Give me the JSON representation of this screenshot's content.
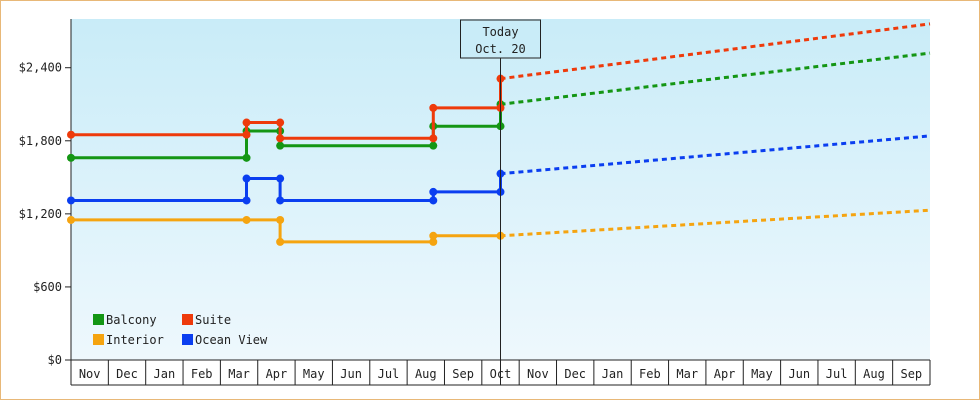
{
  "chart_data": {
    "type": "line",
    "title": "",
    "xlabel": "",
    "ylabel": "",
    "ylim": [
      0,
      2800
    ],
    "y_ticks": [
      0,
      600,
      1200,
      1800,
      2400
    ],
    "y_tick_labels": [
      "$0",
      "$600",
      "$1,200",
      "$1,800",
      "$2,400"
    ],
    "grid": false,
    "legend_position": "bottom-left",
    "months": [
      "Nov",
      "Dec",
      "Jan",
      "Feb",
      "Mar",
      "Apr",
      "May",
      "Jun",
      "Jul",
      "Aug",
      "Sep",
      "Oct",
      "Nov",
      "Dec",
      "Jan",
      "Feb",
      "Mar",
      "Apr",
      "May",
      "Jun",
      "Jul",
      "Aug",
      "Sep"
    ],
    "today": {
      "label": "Today",
      "date": "Oct. 20",
      "x": 11.5
    },
    "series": [
      {
        "name": "Balcony",
        "color": "#149614",
        "history": [
          [
            0,
            1660
          ],
          [
            4.7,
            1660
          ],
          [
            4.7,
            1880
          ],
          [
            5.6,
            1880
          ],
          [
            5.6,
            1760
          ],
          [
            9.7,
            1760
          ],
          [
            9.7,
            1920
          ],
          [
            11.5,
            1920
          ],
          [
            11.5,
            2100
          ]
        ],
        "points": [
          [
            0,
            1660
          ],
          [
            4.7,
            1660
          ],
          [
            4.7,
            1880
          ],
          [
            5.6,
            1880
          ],
          [
            5.6,
            1760
          ],
          [
            9.7,
            1760
          ],
          [
            9.7,
            1920
          ],
          [
            11.5,
            1920
          ],
          [
            11.5,
            2100
          ]
        ],
        "forecast": [
          [
            11.5,
            2100
          ],
          [
            23.0,
            2520
          ]
        ]
      },
      {
        "name": "Suite",
        "color": "#ee3a0b",
        "history": [
          [
            0,
            1850
          ],
          [
            4.7,
            1850
          ],
          [
            4.7,
            1950
          ],
          [
            5.6,
            1950
          ],
          [
            5.6,
            1820
          ],
          [
            9.7,
            1820
          ],
          [
            9.7,
            2070
          ],
          [
            11.5,
            2070
          ],
          [
            11.5,
            2310
          ]
        ],
        "points": [
          [
            0,
            1850
          ],
          [
            4.7,
            1850
          ],
          [
            4.7,
            1950
          ],
          [
            5.6,
            1950
          ],
          [
            5.6,
            1820
          ],
          [
            9.7,
            1820
          ],
          [
            9.7,
            2070
          ],
          [
            11.5,
            2070
          ],
          [
            11.5,
            2310
          ]
        ],
        "forecast": [
          [
            11.5,
            2310
          ],
          [
            23.0,
            2760
          ]
        ]
      },
      {
        "name": "Interior",
        "color": "#f5a410",
        "history": [
          [
            0,
            1150
          ],
          [
            4.7,
            1150
          ],
          [
            5.6,
            1150
          ],
          [
            5.6,
            970
          ],
          [
            9.7,
            970
          ],
          [
            9.7,
            1020
          ],
          [
            11.5,
            1020
          ]
        ],
        "points": [
          [
            0,
            1150
          ],
          [
            4.7,
            1150
          ],
          [
            5.6,
            1150
          ],
          [
            5.6,
            970
          ],
          [
            9.7,
            970
          ],
          [
            9.7,
            1020
          ],
          [
            11.5,
            1020
          ]
        ],
        "forecast": [
          [
            11.5,
            1020
          ],
          [
            23.0,
            1230
          ]
        ]
      },
      {
        "name": "Ocean View",
        "color": "#0a3ef0",
        "history": [
          [
            0,
            1310
          ],
          [
            4.7,
            1310
          ],
          [
            4.7,
            1490
          ],
          [
            5.6,
            1490
          ],
          [
            5.6,
            1310
          ],
          [
            9.7,
            1310
          ],
          [
            9.7,
            1380
          ],
          [
            11.5,
            1380
          ],
          [
            11.5,
            1530
          ]
        ],
        "points": [
          [
            0,
            1310
          ],
          [
            4.7,
            1310
          ],
          [
            4.7,
            1490
          ],
          [
            5.6,
            1490
          ],
          [
            5.6,
            1310
          ],
          [
            9.7,
            1310
          ],
          [
            9.7,
            1380
          ],
          [
            11.5,
            1380
          ],
          [
            11.5,
            1530
          ]
        ],
        "forecast": [
          [
            11.5,
            1530
          ],
          [
            23.0,
            1840
          ]
        ]
      }
    ],
    "legend": [
      {
        "name": "Balcony",
        "color": "#149614"
      },
      {
        "name": "Suite",
        "color": "#ee3a0b"
      },
      {
        "name": "Interior",
        "color": "#f5a410"
      },
      {
        "name": "Ocean View",
        "color": "#0a3ef0"
      }
    ]
  }
}
